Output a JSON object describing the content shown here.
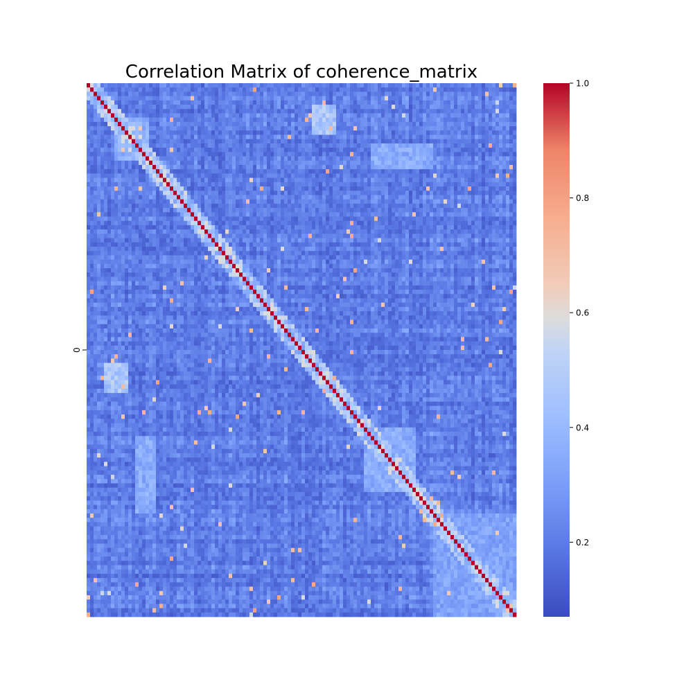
{
  "chart_data": {
    "type": "heatmap",
    "title": "Correlation Matrix of coherence_matrix",
    "ytick_labels": [
      "0"
    ],
    "matrix_size": 124,
    "value_range": [
      0.07,
      1.0
    ],
    "diagonal_value": 1.0,
    "off_diagonal_typical_range": [
      0.1,
      0.45
    ],
    "elevated_blocks": [
      {
        "rows": [
          8,
          18
        ],
        "cols": [
          8,
          18
        ],
        "level": 0.4
      },
      {
        "rows": [
          80,
          95
        ],
        "cols": [
          80,
          95
        ],
        "level": 0.38
      },
      {
        "rows": [
          100,
          124
        ],
        "cols": [
          100,
          124
        ],
        "level": 0.35
      },
      {
        "rows": [
          5,
          12
        ],
        "cols": [
          65,
          72
        ],
        "level": 0.5
      },
      {
        "rows": [
          82,
          100
        ],
        "cols": [
          14,
          20
        ],
        "level": 0.38
      }
    ],
    "colormap": "coolwarm",
    "colorbar": {
      "min": 0.07,
      "max": 1.0,
      "ticks": [
        0.2,
        0.4,
        0.6,
        0.8,
        1.0
      ],
      "tick_labels": [
        "0.2",
        "0.4",
        "0.6",
        "0.8",
        "1.0"
      ]
    },
    "grid": false,
    "legend": "none"
  }
}
